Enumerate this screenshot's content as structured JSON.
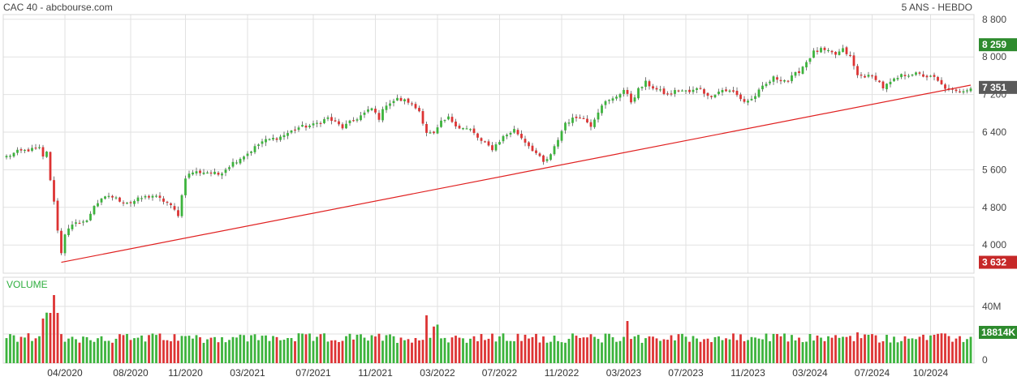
{
  "header": {
    "left": "CAC 40 - abcbourse.com",
    "right": "5 ANS - HEBDO"
  },
  "colors": {
    "up": "#3cb33c",
    "down": "#dd3333",
    "trend": "#e02020",
    "badge_high": "#2e8b2e",
    "badge_last": "#5a5a5a",
    "badge_low": "#c62828",
    "grid": "#e2e2e2"
  },
  "price_badges": {
    "high": "8 259",
    "last": "7 351",
    "low": "3 632"
  },
  "volume": {
    "label": "VOLUME",
    "badge": "18814K",
    "ticks": [
      "40M",
      "0"
    ]
  },
  "chart_data": {
    "type": "candlestick",
    "title": "CAC 40 - abcbourse.com",
    "y_ticks": [
      "8 800",
      "8 000",
      "7 200",
      "6 400",
      "5 600",
      "4 800",
      "4 000"
    ],
    "y_tick_values": [
      8800,
      8000,
      7200,
      6400,
      5600,
      4800,
      4000
    ],
    "ylim": [
      3400,
      8900
    ],
    "x_ticks": [
      "04/2020",
      "08/2020",
      "11/2020",
      "03/2021",
      "07/2021",
      "11/2021",
      "03/2022",
      "07/2022",
      "11/2022",
      "03/2023",
      "07/2023",
      "11/2023",
      "03/2024",
      "07/2024",
      "10/2024"
    ],
    "x_tick_weeks": [
      16,
      34,
      49,
      66,
      84,
      101,
      118,
      135,
      152,
      169,
      186,
      203,
      220,
      237,
      253
    ],
    "weeks": 265,
    "anchors": [
      [
        0,
        5880
      ],
      [
        3,
        5980
      ],
      [
        6,
        6020
      ],
      [
        9,
        6050
      ],
      [
        10,
        5860
      ],
      [
        11,
        6000
      ],
      [
        12,
        5350
      ],
      [
        13,
        4950
      ],
      [
        14,
        4300
      ],
      [
        15,
        3850
      ],
      [
        16,
        4250
      ],
      [
        18,
        4400
      ],
      [
        20,
        4500
      ],
      [
        22,
        4500
      ],
      [
        24,
        4850
      ],
      [
        26,
        4950
      ],
      [
        28,
        5050
      ],
      [
        31,
        4950
      ],
      [
        34,
        4900
      ],
      [
        37,
        5000
      ],
      [
        40,
        5050
      ],
      [
        44,
        4900
      ],
      [
        47,
        4650
      ],
      [
        49,
        5450
      ],
      [
        51,
        5550
      ],
      [
        55,
        5550
      ],
      [
        58,
        5500
      ],
      [
        62,
        5750
      ],
      [
        66,
        5950
      ],
      [
        70,
        6200
      ],
      [
        75,
        6300
      ],
      [
        80,
        6500
      ],
      [
        84,
        6550
      ],
      [
        88,
        6700
      ],
      [
        92,
        6500
      ],
      [
        96,
        6700
      ],
      [
        100,
        6900
      ],
      [
        102,
        6700
      ],
      [
        104,
        7000
      ],
      [
        107,
        7100
      ],
      [
        110,
        7050
      ],
      [
        113,
        6850
      ],
      [
        115,
        6400
      ],
      [
        117,
        6350
      ],
      [
        119,
        6600
      ],
      [
        121,
        6700
      ],
      [
        124,
        6500
      ],
      [
        127,
        6450
      ],
      [
        130,
        6200
      ],
      [
        133,
        6050
      ],
      [
        136,
        6300
      ],
      [
        139,
        6450
      ],
      [
        142,
        6200
      ],
      [
        145,
        5950
      ],
      [
        147,
        5750
      ],
      [
        149,
        5900
      ],
      [
        151,
        6250
      ],
      [
        153,
        6600
      ],
      [
        157,
        6750
      ],
      [
        160,
        6550
      ],
      [
        163,
        7000
      ],
      [
        166,
        7100
      ],
      [
        169,
        7300
      ],
      [
        171,
        7050
      ],
      [
        173,
        7300
      ],
      [
        175,
        7450
      ],
      [
        178,
        7300
      ],
      [
        181,
        7200
      ],
      [
        184,
        7300
      ],
      [
        187,
        7250
      ],
      [
        190,
        7350
      ],
      [
        192,
        7150
      ],
      [
        196,
        7300
      ],
      [
        199,
        7250
      ],
      [
        202,
        7050
      ],
      [
        204,
        7100
      ],
      [
        207,
        7350
      ],
      [
        210,
        7550
      ],
      [
        214,
        7500
      ],
      [
        217,
        7700
      ],
      [
        219,
        7900
      ],
      [
        221,
        8100
      ],
      [
        223,
        8150
      ],
      [
        225,
        8100
      ],
      [
        227,
        8050
      ],
      [
        229,
        8150
      ],
      [
        231,
        8000
      ],
      [
        233,
        7600
      ],
      [
        235,
        7600
      ],
      [
        238,
        7550
      ],
      [
        240,
        7350
      ],
      [
        242,
        7450
      ],
      [
        245,
        7600
      ],
      [
        248,
        7650
      ],
      [
        251,
        7600
      ],
      [
        254,
        7550
      ],
      [
        256,
        7400
      ],
      [
        258,
        7300
      ],
      [
        260,
        7250
      ],
      [
        262,
        7300
      ],
      [
        264,
        7351
      ]
    ],
    "trendline": [
      [
        15,
        3632
      ],
      [
        264,
        7400
      ]
    ]
  }
}
